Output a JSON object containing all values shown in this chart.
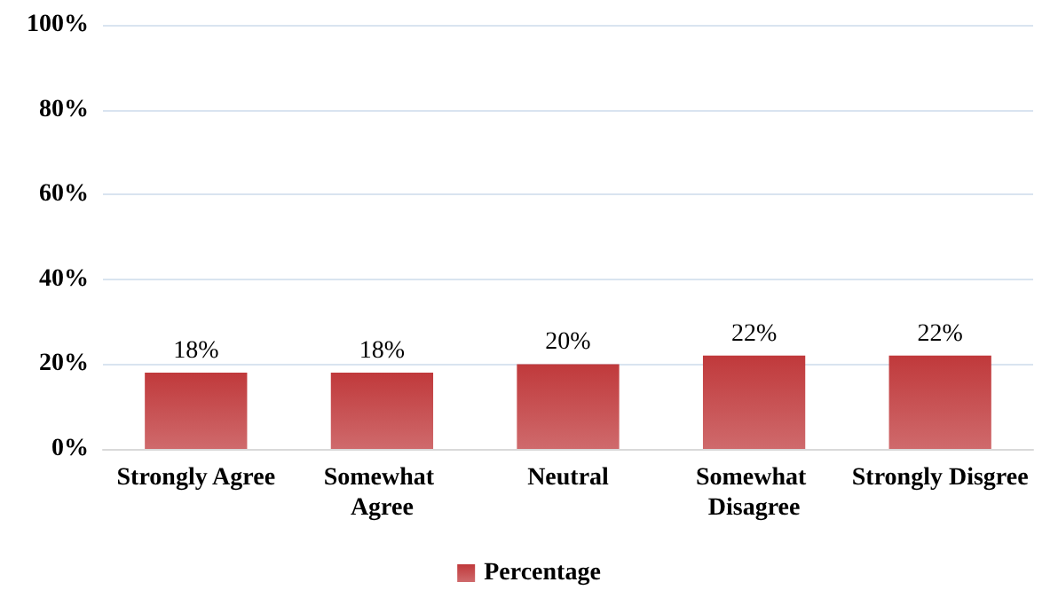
{
  "chart_data": {
    "type": "bar",
    "categories": [
      "Strongly Agree",
      "Somewhat Agree",
      "Neutral",
      "Somewhat Disagree",
      "Strongly Disgree"
    ],
    "series": [
      {
        "name": "Percentage",
        "color": "#c0393b",
        "values": [
          18,
          18,
          20,
          22,
          22
        ],
        "value_labels": [
          "18%",
          "18%",
          "20%",
          "22%",
          "22%"
        ]
      }
    ],
    "ylim": [
      0,
      100
    ],
    "yticks": [
      {
        "value": 0,
        "label": "0%"
      },
      {
        "value": 20,
        "label": "20%"
      },
      {
        "value": 40,
        "label": "40%"
      },
      {
        "value": 60,
        "label": "60%"
      },
      {
        "value": 80,
        "label": "80%"
      },
      {
        "value": 100,
        "label": "100%"
      }
    ],
    "grid": "y",
    "legend": "bottom"
  }
}
